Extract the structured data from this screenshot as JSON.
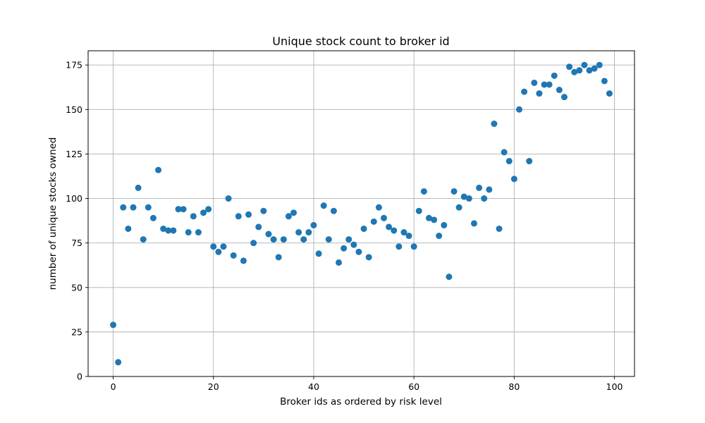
{
  "chart_data": {
    "type": "scatter",
    "title": "Unique stock count to broker id",
    "xlabel": "Broker ids as ordered by risk level",
    "ylabel": "number of unique stocks owned",
    "xlim": [
      -5,
      104
    ],
    "ylim": [
      0,
      183
    ],
    "xticks": [
      0,
      20,
      40,
      60,
      80,
      100
    ],
    "yticks": [
      0,
      25,
      50,
      75,
      100,
      125,
      150,
      175
    ],
    "grid": true,
    "marker_color": "#1f77b4",
    "series": [
      {
        "x": [
          0,
          1,
          2,
          3,
          4,
          5,
          6,
          7,
          8,
          9,
          10,
          11,
          12,
          13,
          14,
          15,
          16,
          17,
          18,
          19,
          20,
          21,
          22,
          23,
          24,
          25,
          26,
          27,
          28,
          29,
          30,
          31,
          32,
          33,
          34,
          35,
          36,
          37,
          38,
          39,
          40,
          41,
          42,
          43,
          44,
          45,
          46,
          47,
          48,
          49,
          50,
          51,
          52,
          53,
          54,
          55,
          56,
          57,
          58,
          59,
          60,
          61,
          62,
          63,
          64,
          65,
          66,
          67,
          68,
          69,
          70,
          71,
          72,
          73,
          74,
          75,
          76,
          77,
          78,
          79,
          80,
          81,
          82,
          83,
          84,
          85,
          86,
          87,
          88,
          89,
          90,
          91,
          92,
          93,
          94,
          95,
          96,
          97,
          98,
          99
        ],
        "y": [
          29,
          8,
          95,
          83,
          95,
          106,
          77,
          95,
          89,
          116,
          83,
          82,
          82,
          94,
          94,
          81,
          90,
          81,
          92,
          94,
          73,
          70,
          73,
          100,
          68,
          90,
          65,
          91,
          75,
          84,
          93,
          80,
          77,
          67,
          77,
          90,
          92,
          81,
          77,
          81,
          85,
          69,
          96,
          77,
          93,
          64,
          72,
          77,
          74,
          70,
          83,
          67,
          87,
          95,
          89,
          84,
          82,
          73,
          81,
          79,
          73,
          93,
          104,
          89,
          88,
          79,
          85,
          56,
          104,
          95,
          101,
          100,
          86,
          106,
          100,
          105,
          142,
          83,
          126,
          121,
          111,
          150,
          160,
          121,
          165,
          159,
          164,
          164,
          169,
          161,
          157,
          174,
          171,
          172,
          175,
          172,
          173,
          175,
          166,
          159
        ]
      }
    ]
  }
}
